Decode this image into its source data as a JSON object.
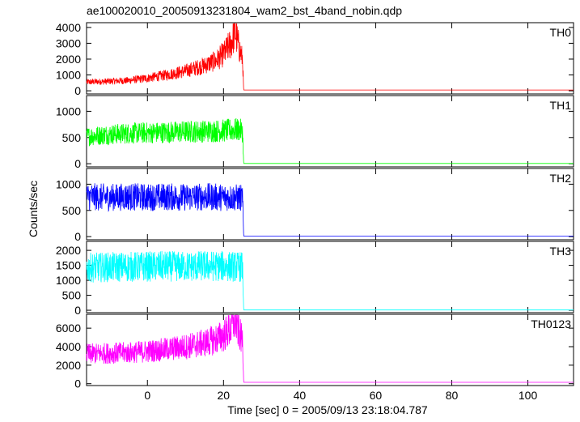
{
  "chart_data": {
    "type": "line",
    "title": "ae100020010_20050913231804_wam2_bst_4band_nobin.qdp",
    "xlabel": "Time [sec] 0 = 2005/09/13 23:18:04.787",
    "ylabel": "Counts/sec",
    "xlim": [
      -16,
      112
    ],
    "x_ticks": [
      0,
      20,
      40,
      60,
      80,
      100
    ],
    "x_tick_labels": [
      "0",
      "20",
      "40",
      "60",
      "80",
      "100"
    ],
    "grid": false,
    "panels": [
      {
        "name": "TH0",
        "color": "#ff0000",
        "ylim": [
          -200,
          4300
        ],
        "y_ticks": [
          0,
          1000,
          2000,
          3000,
          4000
        ],
        "y_tick_labels": [
          "0",
          "1000",
          "2000",
          "3000",
          "4000"
        ],
        "points": [
          [
            -16,
            550
          ],
          [
            -10,
            600
          ],
          [
            -5,
            650
          ],
          [
            0,
            800
          ],
          [
            5,
            1000
          ],
          [
            10,
            1250
          ],
          [
            15,
            1600
          ],
          [
            18,
            1900
          ],
          [
            20,
            2300
          ],
          [
            22,
            3000
          ],
          [
            23,
            3800
          ],
          [
            24,
            2800
          ],
          [
            25,
            2000
          ],
          [
            25.3,
            50
          ],
          [
            112,
            50
          ]
        ]
      },
      {
        "name": "TH1",
        "color": "#00ff00",
        "ylim": [
          -60,
          1300
        ],
        "y_ticks": [
          0,
          500,
          1000
        ],
        "y_tick_labels": [
          "0",
          "500",
          "1000"
        ],
        "points": [
          [
            -16,
            520
          ],
          [
            -10,
            560
          ],
          [
            -5,
            580
          ],
          [
            0,
            590
          ],
          [
            5,
            600
          ],
          [
            10,
            610
          ],
          [
            15,
            620
          ],
          [
            20,
            630
          ],
          [
            24,
            650
          ],
          [
            25,
            620
          ],
          [
            25.3,
            5
          ],
          [
            112,
            5
          ]
        ]
      },
      {
        "name": "TH2",
        "color": "#0000ff",
        "ylim": [
          -60,
          1300
        ],
        "y_ticks": [
          0,
          500,
          1000
        ],
        "y_tick_labels": [
          "0",
          "500",
          "1000"
        ],
        "points": [
          [
            -16,
            760
          ],
          [
            -10,
            750
          ],
          [
            -5,
            760
          ],
          [
            0,
            750
          ],
          [
            5,
            760
          ],
          [
            10,
            750
          ],
          [
            15,
            760
          ],
          [
            20,
            750
          ],
          [
            25,
            740
          ],
          [
            25.3,
            10
          ],
          [
            112,
            10
          ]
        ]
      },
      {
        "name": "TH3",
        "color": "#00ffff",
        "ylim": [
          -80,
          2300
        ],
        "y_ticks": [
          0,
          500,
          1000,
          1500,
          2000
        ],
        "y_tick_labels": [
          "0",
          "500",
          "1000",
          "1500",
          "2000"
        ],
        "points": [
          [
            -16,
            1420
          ],
          [
            -10,
            1440
          ],
          [
            -5,
            1450
          ],
          [
            0,
            1460
          ],
          [
            5,
            1470
          ],
          [
            10,
            1460
          ],
          [
            15,
            1480
          ],
          [
            20,
            1470
          ],
          [
            25,
            1450
          ],
          [
            25.3,
            10
          ],
          [
            112,
            10
          ]
        ]
      },
      {
        "name": "TH0123",
        "color": "#ff00ff",
        "ylim": [
          -200,
          7500
        ],
        "y_ticks": [
          0,
          2000,
          4000,
          6000
        ],
        "y_tick_labels": [
          "0",
          "2000",
          "4000",
          "6000"
        ],
        "points": [
          [
            -16,
            3200
          ],
          [
            -10,
            3300
          ],
          [
            -5,
            3350
          ],
          [
            0,
            3500
          ],
          [
            5,
            3700
          ],
          [
            10,
            4000
          ],
          [
            15,
            4400
          ],
          [
            18,
            4800
          ],
          [
            20,
            5200
          ],
          [
            22,
            6000
          ],
          [
            23,
            7000
          ],
          [
            24,
            5600
          ],
          [
            25,
            4600
          ],
          [
            25.3,
            150
          ],
          [
            112,
            150
          ]
        ]
      }
    ]
  }
}
